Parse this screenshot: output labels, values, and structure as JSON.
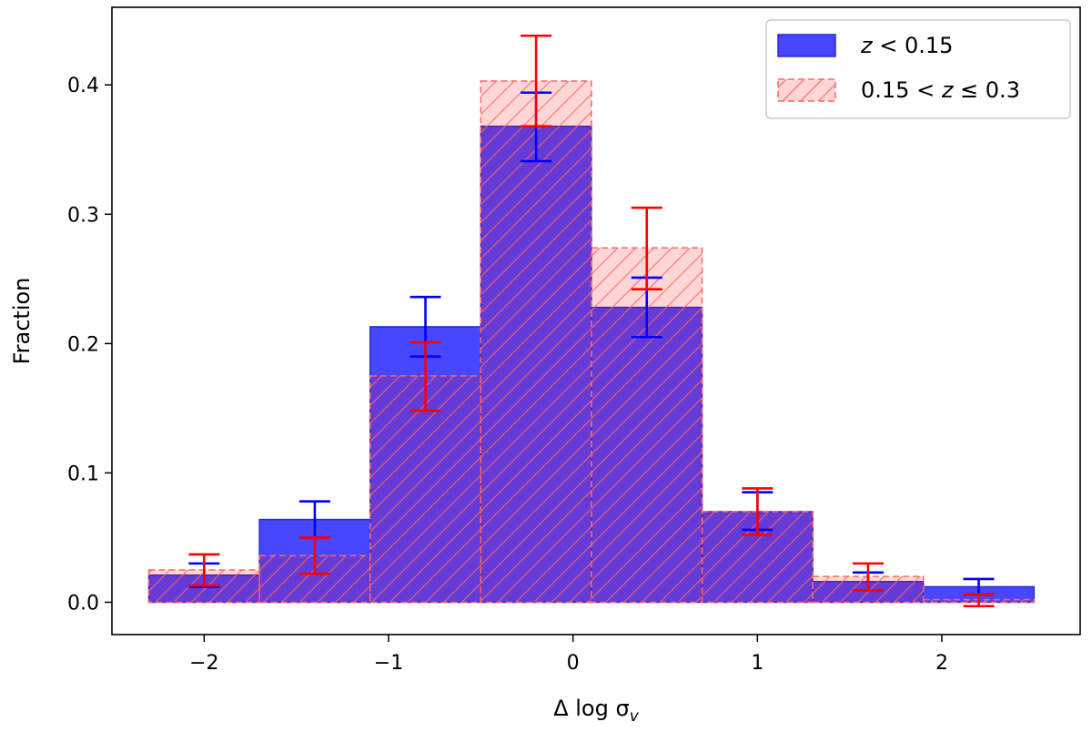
{
  "chart_data": {
    "type": "bar",
    "xlabel": "Δ log σ",
    "xlabel_subscript": "v",
    "ylabel": "Fraction",
    "xlim": [
      -2.5,
      2.75
    ],
    "ylim": [
      -0.025,
      0.46
    ],
    "x_ticks": [
      {
        "value": -2,
        "label": "−2"
      },
      {
        "value": -1,
        "label": "−1"
      },
      {
        "value": 0,
        "label": "0"
      },
      {
        "value": 1,
        "label": "1"
      },
      {
        "value": 2,
        "label": "2"
      }
    ],
    "y_ticks": [
      {
        "value": 0.0,
        "label": "0.0"
      },
      {
        "value": 0.1,
        "label": "0.1"
      },
      {
        "value": 0.2,
        "label": "0.2"
      },
      {
        "value": 0.3,
        "label": "0.3"
      },
      {
        "value": 0.4,
        "label": "0.4"
      }
    ],
    "bin_edges": [
      -2.3,
      -1.7,
      -1.1,
      -0.5,
      0.1,
      0.7,
      1.3,
      1.9,
      2.5
    ],
    "bin_centers": [
      -2.0,
      -1.4,
      -0.8,
      -0.2,
      0.4,
      1.0,
      1.6,
      2.2
    ],
    "series": [
      {
        "legend_parts": [
          "z",
          " < 0.15"
        ],
        "color": "#0000ff",
        "values": [
          0.021,
          0.064,
          0.213,
          0.368,
          0.228,
          0.07,
          0.016,
          0.012
        ],
        "err_low": [
          0.012,
          0.05,
          0.19,
          0.341,
          0.205,
          0.056,
          0.009,
          0.006
        ],
        "err_high": [
          0.03,
          0.078,
          0.236,
          0.394,
          0.251,
          0.085,
          0.023,
          0.018
        ]
      },
      {
        "legend_parts": [
          "0.15 < ",
          "z",
          " ≤ 0.3"
        ],
        "color": "#ff0000",
        "values": [
          0.025,
          0.036,
          0.175,
          0.403,
          0.274,
          0.07,
          0.02,
          0.002
        ],
        "err_low": [
          0.013,
          0.022,
          0.148,
          0.368,
          0.242,
          0.052,
          0.009,
          -0.003
        ],
        "err_high": [
          0.037,
          0.05,
          0.201,
          0.438,
          0.305,
          0.088,
          0.03,
          0.006
        ]
      }
    ],
    "legend_position": "top-right",
    "grid": false
  }
}
